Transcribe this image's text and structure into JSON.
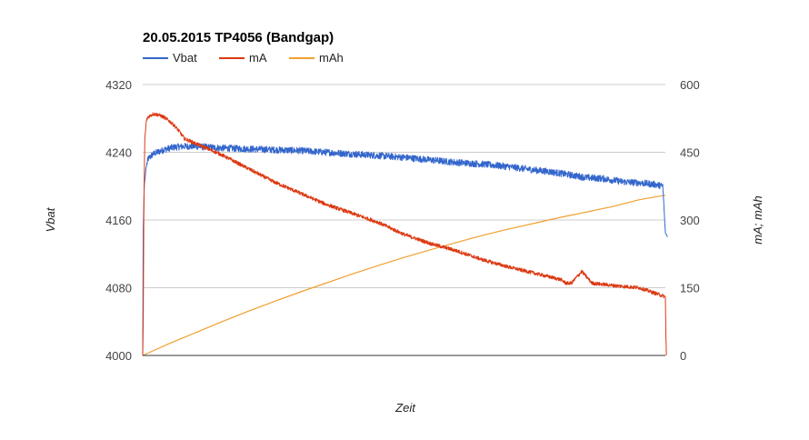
{
  "chart_data": {
    "type": "line",
    "title": "20.05.2015 TP4056 (Bandgap)",
    "xlabel": "Zeit",
    "ylabel_left": "Vbat",
    "ylabel_right": "mA; mAh",
    "x_range": [
      0,
      100
    ],
    "y_left": {
      "range": [
        4000,
        4320
      ],
      "ticks": [
        "4000",
        "4080",
        "4160",
        "4240",
        "4320"
      ]
    },
    "y_right": {
      "range": [
        0,
        600
      ],
      "ticks": [
        "0",
        "150",
        "300",
        "450",
        "600"
      ]
    },
    "grid": true,
    "legend_position": "top-left",
    "series": [
      {
        "name": "Vbat",
        "axis": "left",
        "color": "#3366cc",
        "x": [
          0,
          0.1,
          0.3,
          0.6,
          1,
          2,
          4,
          6,
          8,
          10,
          15,
          20,
          25,
          30,
          35,
          40,
          45,
          50,
          55,
          60,
          65,
          70,
          75,
          78,
          80,
          82,
          85,
          88,
          90,
          92,
          95,
          98,
          99.5,
          100,
          100.4
        ],
        "y": [
          4000,
          4150,
          4200,
          4220,
          4232,
          4238,
          4243,
          4246,
          4247,
          4247,
          4245,
          4244,
          4243,
          4242,
          4240,
          4238,
          4236,
          4234,
          4231,
          4228,
          4226,
          4223,
          4219,
          4217,
          4215,
          4213,
          4210,
          4209,
          4207,
          4205,
          4204,
          4202,
          4200,
          4145,
          4140
        ],
        "noise": 4
      },
      {
        "name": "mA",
        "axis": "right",
        "color": "#dc3912",
        "x": [
          0,
          0.1,
          0.2,
          0.4,
          0.7,
          1,
          2,
          3,
          4,
          5,
          6,
          7,
          8,
          10,
          15,
          20,
          25,
          30,
          35,
          40,
          45,
          50,
          55,
          60,
          65,
          70,
          75,
          80,
          81,
          82,
          84,
          86,
          90,
          95,
          100,
          100.1,
          100.2
        ],
        "y": [
          0,
          80,
          300,
          480,
          520,
          528,
          535,
          533,
          528,
          520,
          510,
          496,
          480,
          470,
          445,
          415,
          385,
          360,
          335,
          315,
          295,
          268,
          248,
          232,
          212,
          196,
          182,
          168,
          160,
          160,
          186,
          160,
          155,
          150,
          130,
          40,
          0
        ],
        "noise": 4
      },
      {
        "name": "mAh",
        "axis": "right",
        "color": "#f0a030",
        "x": [
          0,
          5,
          10,
          15,
          20,
          25,
          30,
          35,
          40,
          45,
          50,
          55,
          60,
          65,
          70,
          75,
          80,
          85,
          90,
          95,
          100
        ],
        "y": [
          0,
          26,
          50,
          74,
          97,
          119,
          140,
          160,
          180,
          199,
          217,
          234,
          250,
          266,
          280,
          293,
          306,
          318,
          330,
          345,
          355
        ]
      }
    ]
  }
}
